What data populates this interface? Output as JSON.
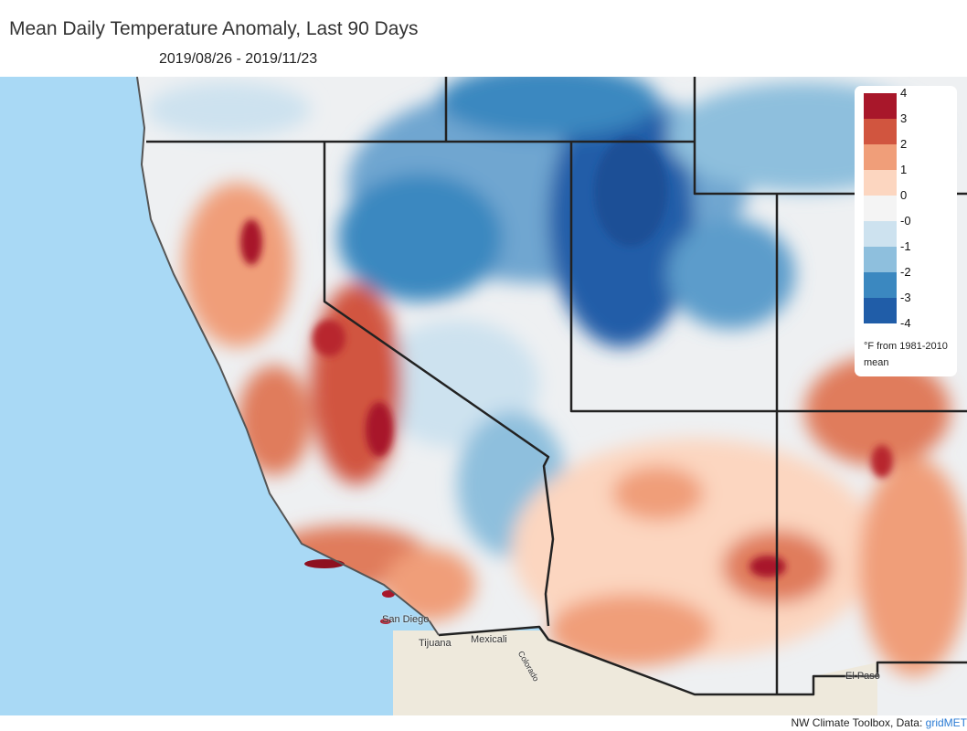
{
  "title": "Mean Daily Temperature Anomaly, Last 90 Days",
  "subtitle": "2019/08/26 - 2019/11/23",
  "legend": {
    "labels": [
      "4",
      "3",
      "2",
      "1",
      "0",
      "-0",
      "-1",
      "-2",
      "-3",
      "-4"
    ],
    "colors": [
      "#a8172a",
      "#d1553f",
      "#f09e79",
      "#fcd6c0",
      "#f4f4f4",
      "#cde2ef",
      "#8ebfdd",
      "#3b88c0",
      "#205da8"
    ],
    "units": "°F from 1981-2010 mean"
  },
  "places": [
    "San Diego",
    "Tijuana",
    "Mexicali",
    "Colorado",
    "El Paso"
  ],
  "credit": {
    "text": "NW Climate Toolbox, Data: ",
    "link": "gridMET"
  }
}
